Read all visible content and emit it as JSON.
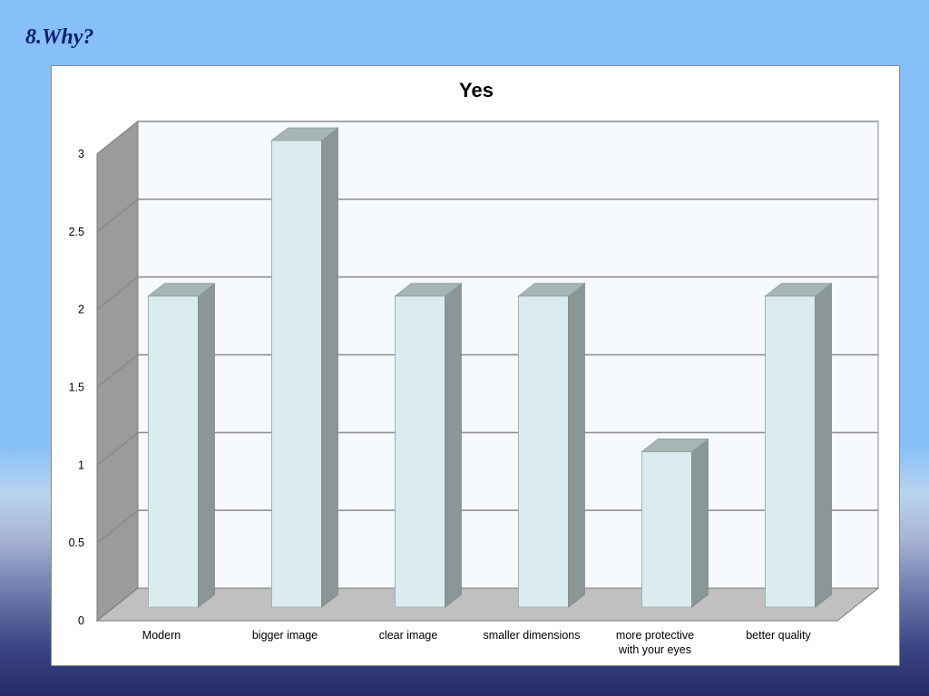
{
  "slide": {
    "heading": "8.Why?"
  },
  "chart_data": {
    "type": "bar",
    "title": "Yes",
    "xlabel": "",
    "ylabel": "",
    "categories": [
      [
        "Modern"
      ],
      [
        "bigger image"
      ],
      [
        "clear image"
      ],
      [
        "smaller dimensions"
      ],
      [
        "more protective",
        "with your eyes"
      ],
      [
        "better quality"
      ]
    ],
    "values": [
      2,
      3,
      2,
      2,
      1,
      2
    ],
    "ylim": [
      0,
      3
    ],
    "yticks": [
      "0",
      "0.5",
      "1",
      "1.5",
      "2",
      "2.5",
      "3"
    ],
    "grid": true,
    "legend": "none",
    "style": "3d-column",
    "colors": {
      "bar_front": "#dbecf0",
      "bar_side": "#8b9797",
      "bar_top": "#a7b5b5",
      "back_wall": "#f6fafc",
      "side_wall": "#9b9b9b",
      "floor": "#c0c0c0",
      "gridline": "#8a8a8a"
    }
  }
}
